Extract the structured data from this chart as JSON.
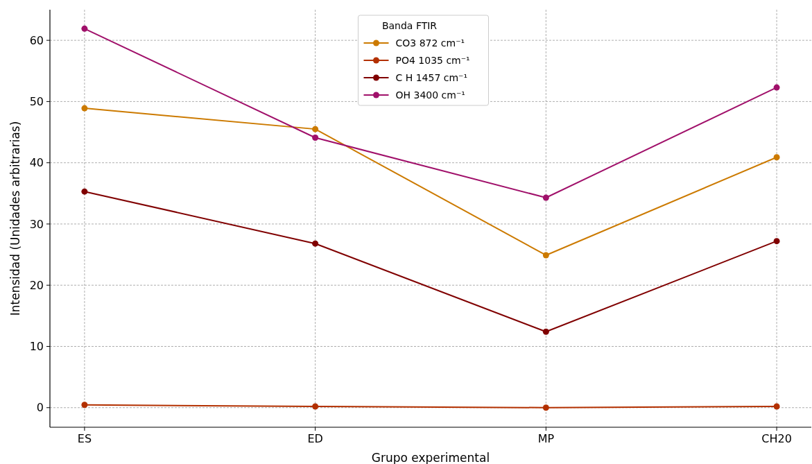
{
  "chart_data": {
    "type": "line",
    "xlabel": "Grupo experimental",
    "ylabel": "Intensidad (Unidades arbitrarias)",
    "legend_title": "Banda FTIR",
    "categories": [
      "ES",
      "ED",
      "MP",
      "CH20"
    ],
    "ylim": [
      -3.2,
      65
    ],
    "yticks": [
      0,
      10,
      20,
      30,
      40,
      50,
      60
    ],
    "grid": true,
    "legend": "top",
    "marker": "circle",
    "line_style": "solid",
    "series": [
      {
        "name": "CO3 872 cm⁻¹",
        "color": "#cc7a00",
        "values": [
          48.9,
          45.5,
          24.9,
          40.9
        ]
      },
      {
        "name": "PO4 1035 cm⁻¹",
        "color": "#b33000",
        "values": [
          0.45,
          0.2,
          0,
          0.2
        ]
      },
      {
        "name": "C H 1457 cm⁻¹",
        "color": "#800000",
        "values": [
          35.3,
          26.8,
          12.4,
          27.2
        ]
      },
      {
        "name": "OH 3400 cm⁻¹",
        "color": "#a0106a",
        "values": [
          61.9,
          44.1,
          34.3,
          52.3
        ]
      }
    ]
  }
}
